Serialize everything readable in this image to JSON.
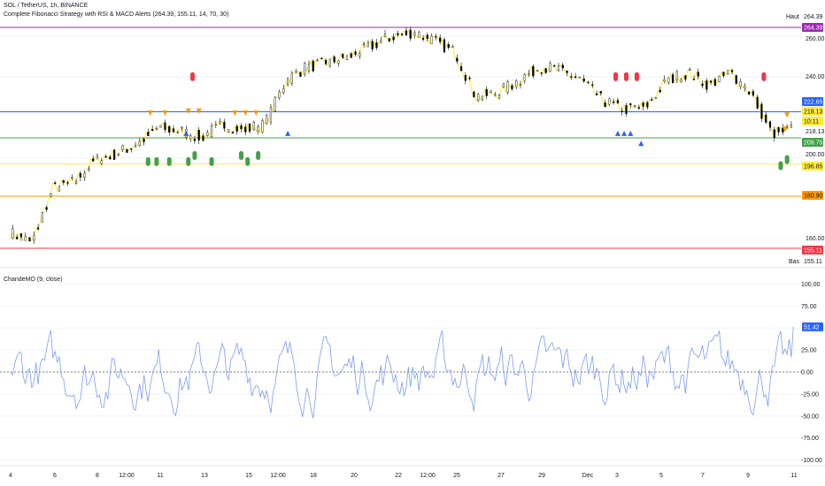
{
  "header": {
    "symbol": "SOL / TetherUS, 1h, BINANCE",
    "strategy": "Complete Fibonacci Strategy with RSI & MACD Alerts (264.39, 155.11, 14, 70, 30)"
  },
  "colors": {
    "fib_high": "#9c27b0",
    "fib_618": "#2962ff",
    "fib_5": "#43a047",
    "fib_382": "#ffeb3b",
    "fib_236": "#ff9800",
    "fib_low": "#f23645",
    "candle": "#000000",
    "price_line": "#ffeb3b",
    "cmo": "#7b9cf0",
    "buy": "#2962ff",
    "sell": "#ff9800",
    "rsi_buy": "#43a047",
    "rsi_sell": "#f23645"
  },
  "chart_data": [
    {
      "type": "line",
      "title": "SOL / TetherUS, 1h, BINANCE",
      "ylim": [
        150,
        270
      ],
      "y_ticks": [
        "260.00",
        "240.00",
        "218.13",
        "200.00",
        "160.00"
      ],
      "x_ticks": [
        "4",
        "6",
        "8",
        "12:00",
        "11",
        "13",
        "15",
        "12:00",
        "18",
        "20",
        "22",
        "12:00",
        "25",
        "27",
        "29",
        "Dec",
        "3",
        "5",
        "7",
        "9",
        "11"
      ],
      "x": [
        "Nov 4",
        "Nov 5",
        "Nov 6",
        "Nov 7",
        "Nov 8",
        "Nov 9",
        "Nov 10",
        "Nov 11",
        "Nov 12",
        "Nov 13",
        "Nov 14",
        "Nov 15",
        "Nov 16",
        "Nov 17",
        "Nov 18",
        "Nov 19",
        "Nov 20",
        "Nov 21",
        "Nov 22",
        "Nov 23",
        "Nov 24",
        "Nov 25",
        "Nov 26",
        "Nov 27",
        "Nov 28",
        "Nov 29",
        "Nov 30",
        "Dec 1",
        "Dec 2",
        "Dec 3",
        "Dec 4",
        "Dec 5",
        "Dec 6",
        "Dec 7",
        "Dec 8",
        "Dec 9",
        "Dec 10",
        "Dec 11"
      ],
      "close": [
        163,
        158,
        185,
        188,
        199,
        202,
        207,
        215,
        213,
        210,
        216,
        214,
        216,
        238,
        245,
        247,
        250,
        255,
        260,
        262,
        258,
        252,
        230,
        232,
        238,
        245,
        243,
        238,
        228,
        224,
        225,
        238,
        242,
        236,
        242,
        232,
        212,
        214
      ],
      "levels": [
        {
          "value": 264.39,
          "label": "264.39",
          "color": "#9c27b0"
        },
        {
          "value": 222.65,
          "label": "222.65",
          "color": "#2962ff"
        },
        {
          "value": 209.75,
          "label": "209.75",
          "color": "#43a047"
        },
        {
          "value": 196.85,
          "label": "196.85",
          "color": "#ffeb3b"
        },
        {
          "value": 180.9,
          "label": "180.90",
          "color": "#ff9800"
        },
        {
          "value": 155.11,
          "label": "155.11",
          "color": "#f23645"
        }
      ],
      "high_label": "Haut",
      "high_value": "264.39",
      "low_label": "Bas",
      "low_value": "155.11",
      "last_price": "218.13",
      "countdown": "10:11",
      "signals": [
        {
          "kind": "rsi_sell",
          "day": 8.6,
          "price": 240
        },
        {
          "kind": "sell",
          "day": 6.6,
          "price": 222
        },
        {
          "kind": "sell",
          "day": 7.3,
          "price": 222
        },
        {
          "kind": "sell",
          "day": 8.4,
          "price": 223
        },
        {
          "kind": "sell",
          "day": 8.9,
          "price": 223
        },
        {
          "kind": "sell",
          "day": 10.6,
          "price": 222
        },
        {
          "kind": "sell",
          "day": 11.1,
          "price": 222
        },
        {
          "kind": "sell",
          "day": 11.6,
          "price": 222
        },
        {
          "kind": "buy",
          "day": 8.3,
          "price": 212
        },
        {
          "kind": "buy",
          "day": 13.1,
          "price": 212
        },
        {
          "kind": "rsi_buy",
          "day": 6.5,
          "price": 198
        },
        {
          "kind": "rsi_buy",
          "day": 6.9,
          "price": 198
        },
        {
          "kind": "rsi_buy",
          "day": 7.5,
          "price": 198
        },
        {
          "kind": "rsi_buy",
          "day": 8.4,
          "price": 198
        },
        {
          "kind": "rsi_buy",
          "day": 8.7,
          "price": 201
        },
        {
          "kind": "rsi_buy",
          "day": 9.5,
          "price": 198
        },
        {
          "kind": "rsi_buy",
          "day": 10.9,
          "price": 201
        },
        {
          "kind": "rsi_buy",
          "day": 11.2,
          "price": 198
        },
        {
          "kind": "rsi_buy",
          "day": 11.7,
          "price": 201
        },
        {
          "kind": "rsi_sell",
          "day": 28.6,
          "price": 240
        },
        {
          "kind": "rsi_sell",
          "day": 29.1,
          "price": 240
        },
        {
          "kind": "rsi_sell",
          "day": 29.6,
          "price": 240
        },
        {
          "kind": "rsi_sell",
          "day": 35.6,
          "price": 240
        },
        {
          "kind": "buy",
          "day": 28.7,
          "price": 212
        },
        {
          "kind": "buy",
          "day": 29.0,
          "price": 212
        },
        {
          "kind": "buy",
          "day": 29.3,
          "price": 212
        },
        {
          "kind": "buy",
          "day": 29.8,
          "price": 207
        },
        {
          "kind": "sell",
          "day": 36.7,
          "price": 221
        },
        {
          "kind": "sell",
          "day": 36.6,
          "price": 214
        },
        {
          "kind": "rsi_buy",
          "day": 36.4,
          "price": 196
        },
        {
          "kind": "rsi_buy",
          "day": 36.7,
          "price": 199
        }
      ]
    },
    {
      "type": "line",
      "title": "ChandeMO (9, close)",
      "ylim": [
        -100,
        100
      ],
      "y_ticks": [
        "100.00",
        "75.00",
        "25.00",
        "0.00",
        "-25.00",
        "-50.00",
        "-75.00",
        "-100.00"
      ],
      "last_value": "51.42"
    }
  ]
}
